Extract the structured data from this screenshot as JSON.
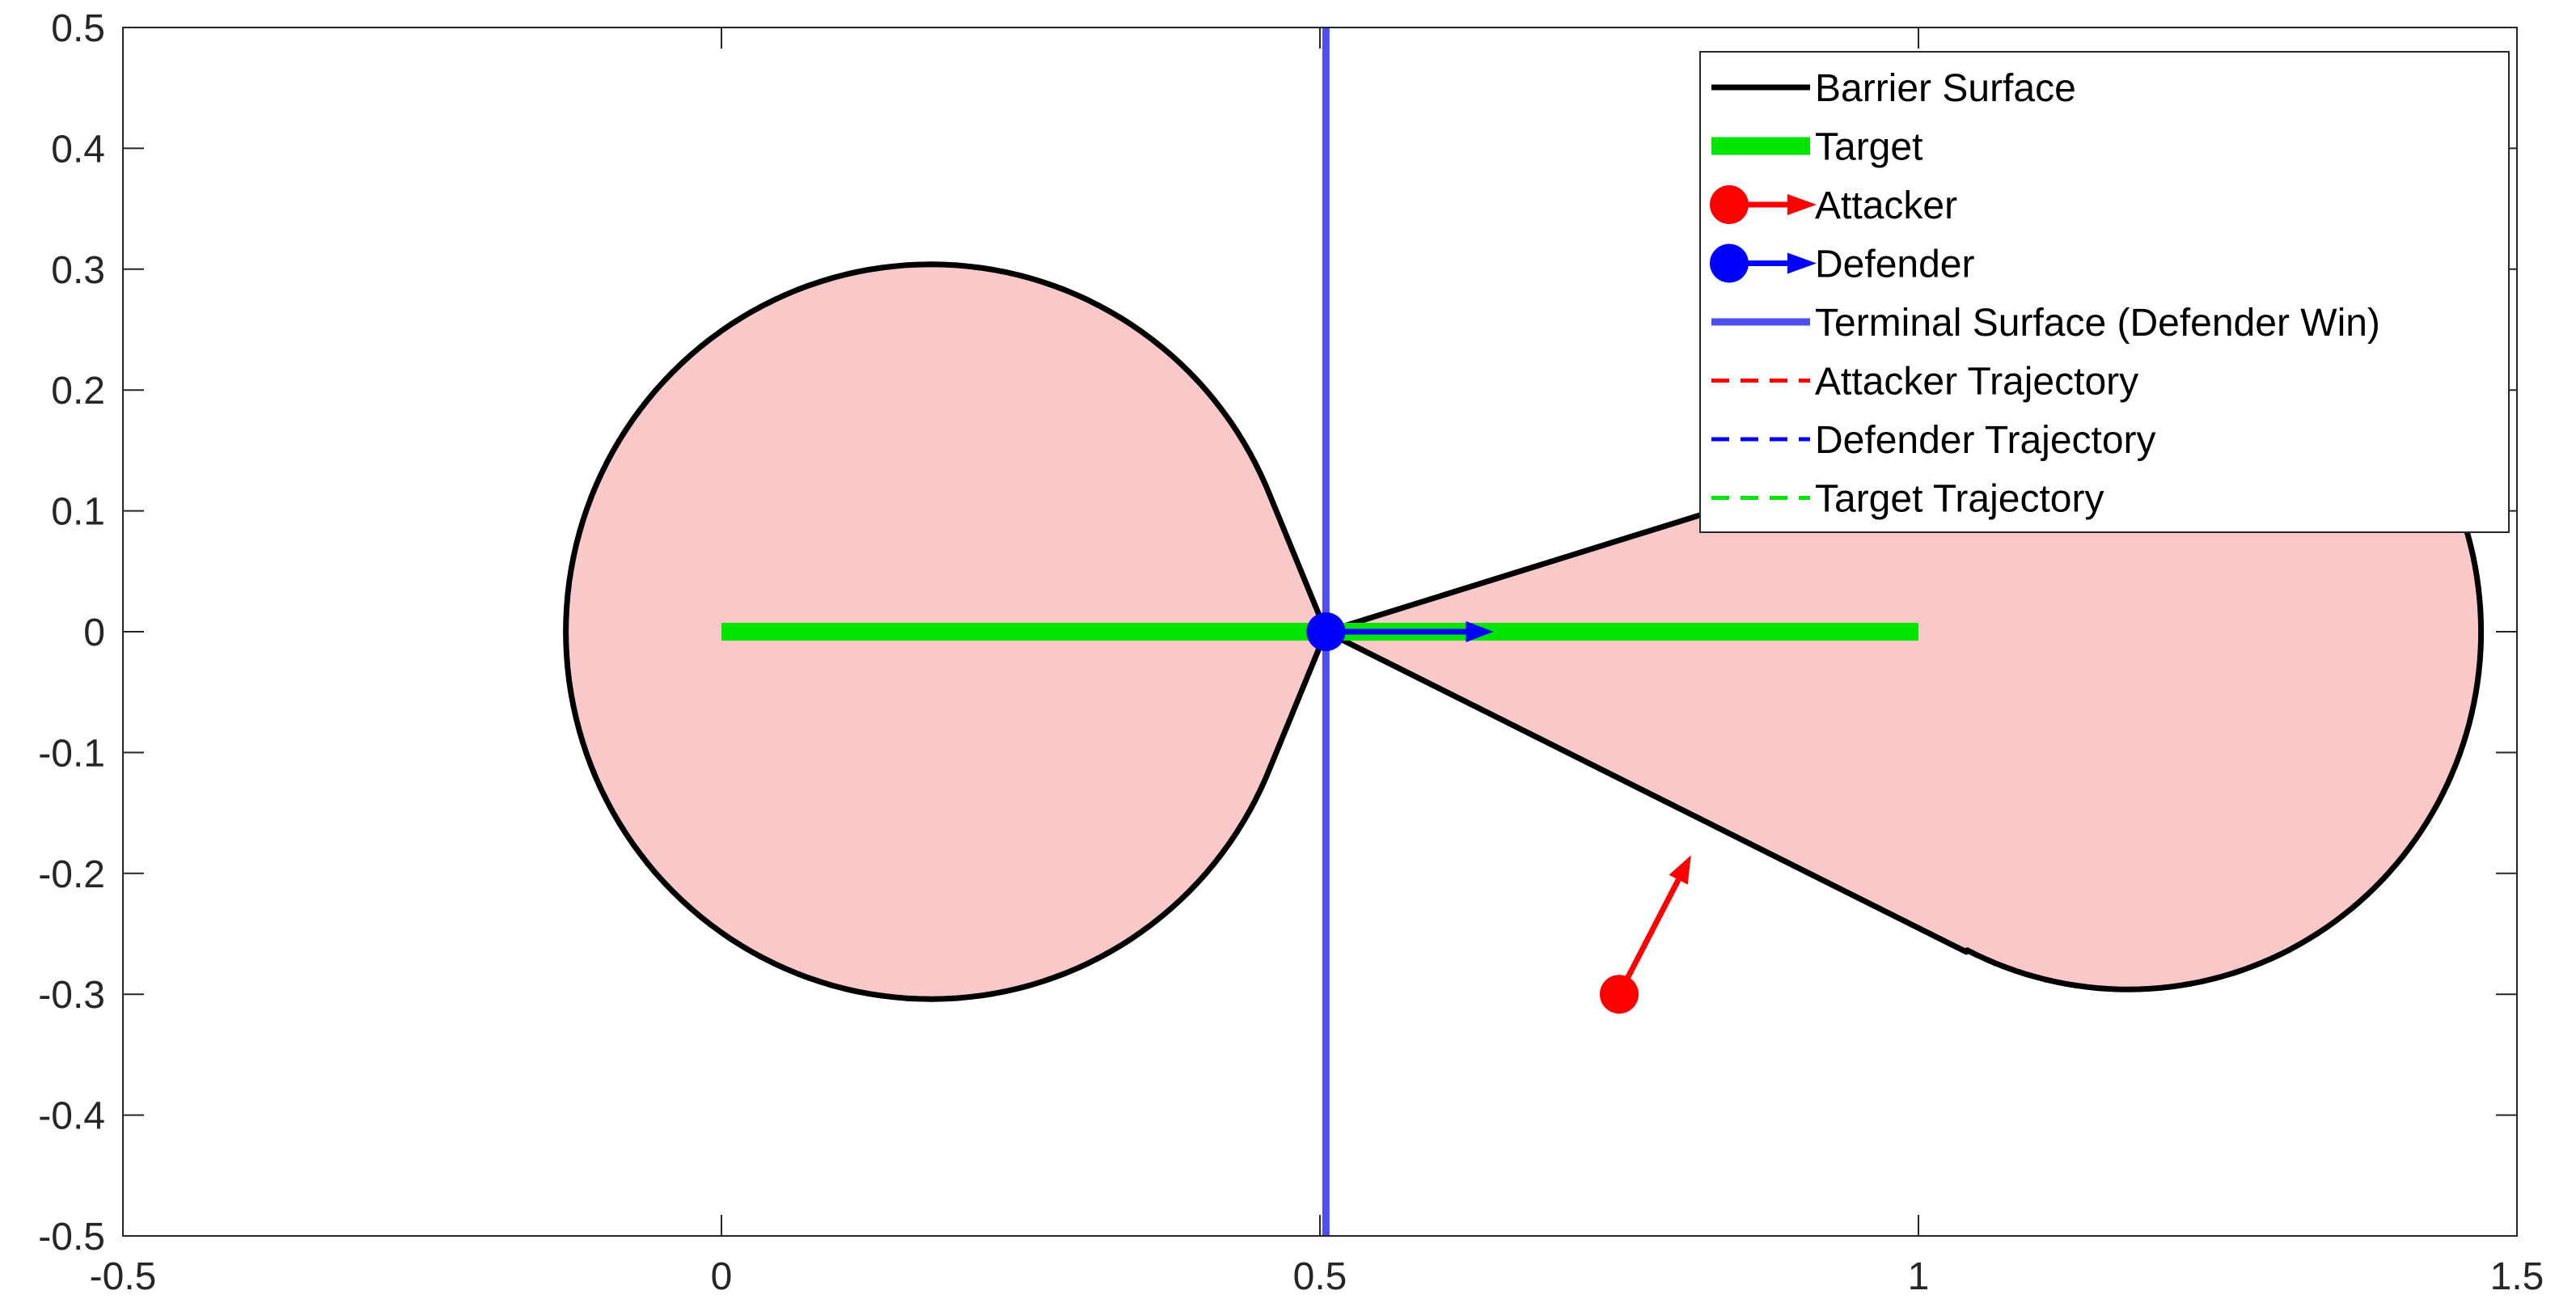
{
  "chart_data": {
    "type": "line",
    "xlim": [
      -0.5,
      1.5
    ],
    "ylim": [
      -0.5,
      0.5
    ],
    "x_ticks": [
      -0.5,
      0,
      0.5,
      1,
      1.5
    ],
    "x_tick_labels": [
      "-0.5",
      "0",
      "0.5",
      "1",
      "1.5"
    ],
    "y_ticks": [
      0.5,
      0.4,
      0.3,
      0.2,
      0.1,
      0,
      -0.1,
      -0.2,
      -0.3,
      -0.4,
      -0.5
    ],
    "y_tick_labels": [
      "0.5",
      "0.4",
      "0.3",
      "0.2",
      "0.1",
      "0",
      "-0.1",
      "-0.2",
      "-0.3",
      "-0.4",
      "-0.5"
    ],
    "grid": false,
    "legend_position": "top-right",
    "region_fill_color": "#f9c8c8",
    "barrier_surface": {
      "name": "Barrier Surface",
      "color": "#000000",
      "left_lobe": {
        "center": [
          0.175,
          0
        ],
        "radius": 0.304,
        "x_min": -0.13,
        "neck_x": 0.455,
        "neck_y": 0.13
      },
      "right_lobe": {
        "center": [
          1.175,
          0
        ],
        "radius": 0.296,
        "x_max": 1.47
      },
      "pinch_point": [
        0.505,
        0
      ],
      "upper_tangent_point": [
        0.83,
        0.16
      ],
      "lower_tangent_point": [
        1.04,
        -0.265
      ]
    },
    "target": {
      "name": "Target",
      "color": "#00e600",
      "x": [
        0,
        1
      ],
      "y": [
        0,
        0
      ]
    },
    "attacker": {
      "name": "Attacker",
      "color": "#ff0000",
      "position": [
        0.75,
        -0.3
      ],
      "velocity_tip": [
        0.81,
        -0.185
      ]
    },
    "defender": {
      "name": "Defender",
      "color": "#0000ff",
      "position": [
        0.505,
        0
      ],
      "velocity_tip": [
        0.645,
        0
      ]
    },
    "terminal_surface": {
      "name": "Terminal Surface (Defender Win)",
      "color": "#4f4ff0",
      "x": 0.505
    },
    "attacker_trajectory": {
      "name": "Attacker Trajectory",
      "color": "#ff0000"
    },
    "defender_trajectory": {
      "name": "Defender Trajectory",
      "color": "#0000ff"
    },
    "target_trajectory": {
      "name": "Target Trajectory",
      "color": "#00e600"
    }
  }
}
